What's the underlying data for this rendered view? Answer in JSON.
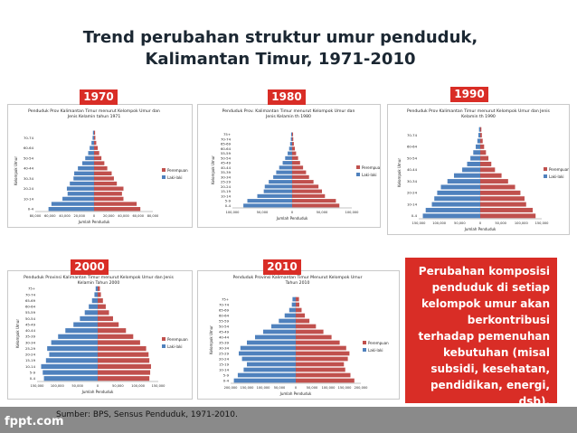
{
  "slide": {
    "title_line1": "Trend perubahan struktur umur penduduk,",
    "title_line2": "Kalimantan Timur, 1971-2010",
    "note": "Perubahan komposisi penduduk di setiap kelompok umur akan berkontribusi terhadap pemenuhan kebutuhan (misal subsidi, kesehatan, pendidikan, energi, dsb).",
    "source": "Sumber: BPS, Sensus Penduduk, 1971-2010.",
    "logo": "fppt.com",
    "accent_color": "#d92d26",
    "footer_color": "#8a8a8a",
    "title_color": "#1b2732"
  },
  "chart_data": [
    {
      "type": "bar",
      "year_label": "1970",
      "title": "Penduduk Prov Kalimantan Timur menurut Kelompok Umur dan Jenis Kelamin tahun 1971",
      "xlabel": "Jumlah Penduduk",
      "ylabel": "Kelompok Umur",
      "legend": [
        "Perempuan",
        "Laki-laki"
      ],
      "legend_position": "right",
      "age_groups": [
        "0-4",
        "5-9",
        "10-14",
        "15-19",
        "20-24",
        "25-29",
        "30-34",
        "35-39",
        "40-44",
        "45-49",
        "50-54",
        "55-59",
        "60-64",
        "65-69",
        "70-74",
        "75+"
      ],
      "y_tick_labels": [
        "0-4",
        "10-14",
        "20-24",
        "30-34",
        "40-44",
        "50-54",
        "60-64",
        "70-74"
      ],
      "x_tick_labels": [
        "80,000",
        "60,000",
        "40,000",
        "20,000",
        "0",
        "20,000",
        "40,000",
        "60,000",
        "80,000"
      ],
      "xlim": [
        -80000,
        80000
      ],
      "series": [
        {
          "name": "Laki-laki",
          "color": "#4f81bd",
          "values": [
            62000,
            58000,
            43000,
            36000,
            37000,
            33000,
            28000,
            27000,
            22000,
            16000,
            12000,
            8000,
            6000,
            3500,
            2000,
            1500
          ]
        },
        {
          "name": "Perempuan",
          "color": "#c0504d",
          "values": [
            63000,
            58000,
            40000,
            38000,
            40000,
            31000,
            27000,
            24000,
            18000,
            14000,
            10000,
            7000,
            5000,
            3000,
            1800,
            1400
          ]
        }
      ]
    },
    {
      "type": "bar",
      "year_label": "1980",
      "title": "Penduduk Prov. Kalimantan Timur menurut Kelompok Umur dan Jenis Kelamin th 1980",
      "xlabel": "Jumlah Penduduk",
      "ylabel": "Kelompok Umur",
      "legend": [
        "Perempuan",
        "Laki-laki"
      ],
      "legend_position": "right",
      "age_groups": [
        "0-4",
        "5-9",
        "10-14",
        "15-19",
        "20-24",
        "25-29",
        "30-34",
        "35-39",
        "40-44",
        "45-49",
        "50-54",
        "55-59",
        "60-64",
        "65-69",
        "70-74",
        "75+"
      ],
      "y_tick_labels": [
        "0-4",
        "5-9",
        "10-14",
        "15-19",
        "20-24",
        "25-29",
        "30-34",
        "35-39",
        "40-44",
        "45-49",
        "50-54",
        "55-59",
        "60-64",
        "65-69",
        "70-74",
        "75+"
      ],
      "x_tick_labels": [
        "100,000",
        "50,000",
        "0",
        "50,000",
        "100,000"
      ],
      "xlim": [
        -120000,
        120000
      ],
      "series": [
        {
          "name": "Laki-laki",
          "color": "#4f81bd",
          "values": [
            98000,
            90000,
            70000,
            57000,
            55000,
            47000,
            38000,
            32000,
            26000,
            19000,
            14000,
            9000,
            6000,
            4000,
            2500,
            2000
          ]
        },
        {
          "name": "Perempuan",
          "color": "#c0504d",
          "values": [
            95000,
            88000,
            66000,
            60000,
            53000,
            43000,
            34000,
            28000,
            22000,
            16000,
            12000,
            8000,
            5500,
            3500,
            2300,
            1900
          ]
        }
      ]
    },
    {
      "type": "bar",
      "year_label": "1990",
      "title": "Penduduk Prov Kalimantan Timur menurut Kelompok Umur dan Jenis Kelamin th 1990",
      "xlabel": "Jumlah Penduduk",
      "ylabel": "Kelompok Umur",
      "legend": [
        "Perempuan",
        "Laki-laki"
      ],
      "legend_position": "right",
      "age_groups": [
        "0-4",
        "5-9",
        "10-14",
        "15-19",
        "20-24",
        "25-29",
        "30-34",
        "35-39",
        "40-44",
        "45-49",
        "50-54",
        "55-59",
        "60-64",
        "65-69",
        "70-74",
        "75+"
      ],
      "y_tick_labels": [
        "0-4",
        "10-14",
        "20-24",
        "30-34",
        "40-44",
        "50-54",
        "60-64",
        "70-74"
      ],
      "x_tick_labels": [
        "150,000",
        "100,000",
        "50,000",
        "0",
        "50,000",
        "100,000",
        "150,000"
      ],
      "xlim": [
        -150000,
        150000
      ],
      "series": [
        {
          "name": "Laki-laki",
          "color": "#4f81bd",
          "values": [
            140000,
            133000,
            118000,
            112000,
            105000,
            96000,
            80000,
            64000,
            44000,
            32000,
            24000,
            17000,
            11000,
            7000,
            4500,
            3000
          ]
        },
        {
          "name": "Perempuan",
          "color": "#c0504d",
          "values": [
            135000,
            128000,
            112000,
            108000,
            98000,
            85000,
            68000,
            52000,
            36000,
            27000,
            20000,
            14000,
            9500,
            6000,
            4000,
            2800
          ]
        }
      ]
    },
    {
      "type": "bar",
      "year_label": "2000",
      "title": "Penduduk Provinsi Kalimantan Timur menurut Kelompok Umur dan Jenis Kelamin Tahun 2000",
      "xlabel": "Jumlah Penduduk",
      "ylabel": "Kelompok Umur",
      "legend": [
        "Perempuan",
        "Laki-laki"
      ],
      "legend_position": "right",
      "age_groups": [
        "0-4",
        "5-9",
        "10-14",
        "15-19",
        "20-24",
        "25-29",
        "30-34",
        "35-39",
        "40-44",
        "45-49",
        "50-54",
        "55-59",
        "60-64",
        "65-69",
        "70-74",
        "75+"
      ],
      "y_tick_labels": [
        "0-4",
        "5-9",
        "10-14",
        "15-19",
        "20-24",
        "25-29",
        "30-34",
        "35-39",
        "40-44",
        "45-49",
        "50-54",
        "55-59",
        "60-64",
        "65-69",
        "70-74",
        "75+"
      ],
      "x_tick_labels": [
        "150,000",
        "100,000",
        "50,000",
        "0",
        "50,000",
        "100,000",
        "150,000"
      ],
      "xlim": [
        -150000,
        150000
      ],
      "series": [
        {
          "name": "Laki-laki",
          "color": "#4f81bd",
          "values": [
            133000,
            136000,
            140000,
            128000,
            120000,
            125000,
            115000,
            98000,
            80000,
            60000,
            44000,
            32000,
            22000,
            14000,
            8000,
            5000
          ]
        },
        {
          "name": "Perempuan",
          "color": "#c0504d",
          "values": [
            128000,
            130000,
            132000,
            128000,
            126000,
            120000,
            105000,
            88000,
            70000,
            52000,
            38000,
            28000,
            20000,
            13000,
            8000,
            5500
          ]
        }
      ]
    },
    {
      "type": "bar",
      "year_label": "2010",
      "title": "Penduduk Provinsi Kalimantan Timur Menurut Kelompok Umur Tahun 2010",
      "xlabel": "Jumlah Penduduk",
      "ylabel": "Kelompok Umur",
      "legend": [
        "Perempuan",
        "Laki-laki"
      ],
      "legend_position": "right",
      "age_groups": [
        "0-4",
        "5-9",
        "10-14",
        "15-19",
        "20-24",
        "25-29",
        "30-34",
        "35-39",
        "40-44",
        "45-49",
        "50-54",
        "55-59",
        "60-64",
        "65-69",
        "70-74",
        "75+"
      ],
      "y_tick_labels": [
        "0-4",
        "5-9",
        "10-14",
        "15-19",
        "20-24",
        "25-29",
        "30-34",
        "35-39",
        "40-44",
        "45-49",
        "50-54",
        "55-59",
        "60-64",
        "65-69",
        "70-74",
        "75+"
      ],
      "x_tick_labels": [
        "200,000",
        "150,000",
        "100,000",
        "50,000",
        "0",
        "50,000",
        "100,000",
        "150,000",
        "200,000"
      ],
      "xlim": [
        -200000,
        200000
      ],
      "series": [
        {
          "name": "Laki-laki",
          "color": "#4f81bd",
          "values": [
            190000,
            178000,
            160000,
            150000,
            165000,
            175000,
            170000,
            150000,
            125000,
            100000,
            75000,
            52000,
            34000,
            20000,
            12000,
            10000
          ]
        },
        {
          "name": "Perempuan",
          "color": "#c0504d",
          "values": [
            180000,
            168000,
            152000,
            148000,
            160000,
            165000,
            155000,
            135000,
            110000,
            85000,
            62000,
            42000,
            28000,
            18000,
            11000,
            10000
          ]
        }
      ]
    }
  ]
}
